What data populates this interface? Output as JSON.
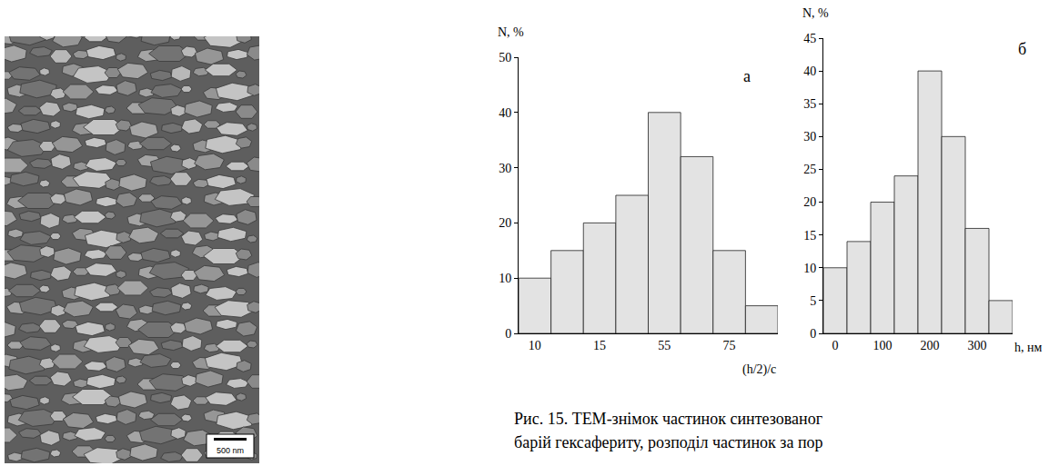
{
  "image": {
    "scale_bar": "500 nm"
  },
  "chart_data": [
    {
      "type": "bar",
      "annotations": [
        "а"
      ],
      "x_label": "(h/2)/c",
      "y_label": "N, %",
      "categories": [
        "10",
        null,
        "15",
        null,
        "55",
        null,
        "75",
        null
      ],
      "values": [
        10,
        15,
        20,
        25,
        40,
        32,
        15,
        5
      ],
      "color": "#e3e3e3",
      "ylim": [
        0,
        50
      ],
      "yticks": [
        0,
        10,
        20,
        30,
        40,
        50
      ],
      "grid": false
    },
    {
      "type": "bar",
      "annotations": [
        "б"
      ],
      "x_label": "h, нм",
      "y_label": "N, %",
      "x": [
        0,
        50,
        100,
        150,
        200,
        250,
        300,
        350
      ],
      "values": [
        10,
        14,
        20,
        24,
        40,
        30,
        16,
        5
      ],
      "color": "#e3e3e3",
      "xlim": [
        -25,
        375
      ],
      "xticks": [
        0,
        100,
        200,
        300
      ],
      "ylim": [
        0,
        45
      ],
      "yticks": [
        0,
        5,
        10,
        15,
        20,
        25,
        30,
        35,
        40,
        45
      ],
      "grid": false
    }
  ],
  "caption": [
    "Рис. 15. ТЕМ-знімок частинок синтезованог",
    "барій гексафериту, розподіл частинок за пор"
  ]
}
